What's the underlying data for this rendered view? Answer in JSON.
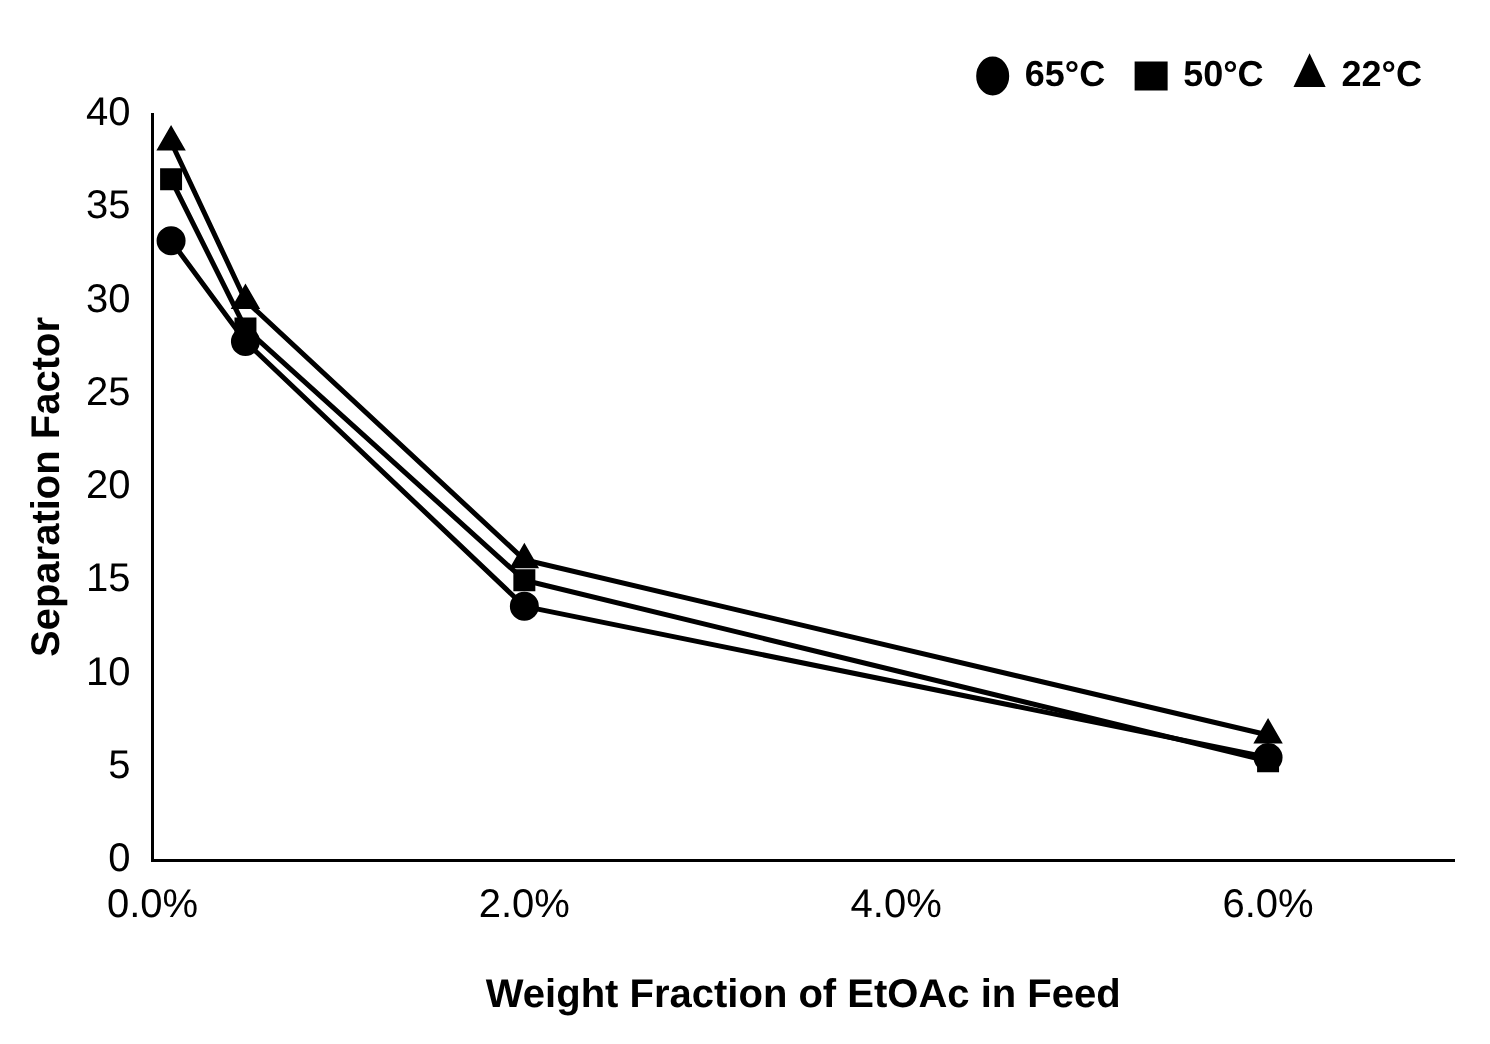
{
  "chart_data": {
    "type": "line",
    "xlabel": "Weight Fraction of EtOAc in Feed",
    "ylabel": "Separation Factor",
    "x": [
      0.1,
      0.5,
      2,
      6
    ],
    "series": [
      {
        "name": "65°C",
        "color": "#000000",
        "marker": "circle",
        "values": [
          33.2,
          27.8,
          13.6,
          5.5
        ]
      },
      {
        "name": "50°C",
        "color": "#000000",
        "marker": "square",
        "values": [
          36.5,
          28.5,
          15.0,
          5.3
        ]
      },
      {
        "name": "22°C",
        "color": "#000000",
        "marker": "triangle",
        "values": [
          38.5,
          30.0,
          16.1,
          6.7
        ]
      }
    ],
    "xlim": [
      0,
      7
    ],
    "xticks": [
      {
        "value": 0,
        "label": "0.0%"
      },
      {
        "value": 2,
        "label": "2.0%"
      },
      {
        "value": 4,
        "label": "4.0%"
      },
      {
        "value": 6,
        "label": "6.0%"
      }
    ],
    "ylim": [
      0,
      40
    ],
    "yticks": [
      0,
      5,
      10,
      15,
      20,
      25,
      30,
      35,
      40
    ],
    "grid": false,
    "legend": "top right",
    "line_style": "solid"
  }
}
